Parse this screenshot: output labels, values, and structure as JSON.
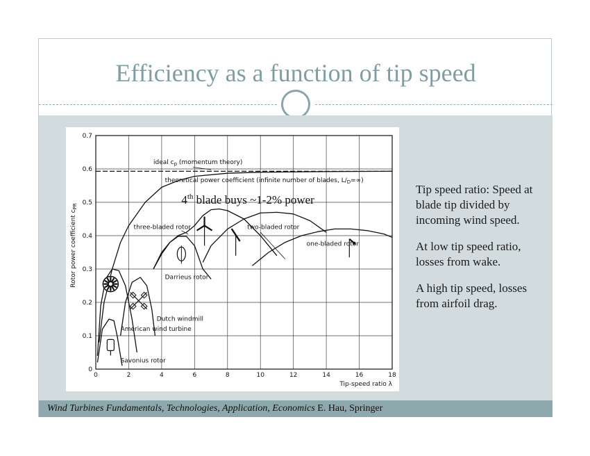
{
  "slide": {
    "title": "Efficiency as a function of tip speed",
    "side_text": [
      "Tip speed ratio: Speed at blade tip divided by incoming wind speed.",
      "At low tip speed ratio, losses from wake.",
      "A high tip speed, losses from airfoil drag."
    ],
    "footer_italic": "Wind Turbines Fundamentals, Technologies, Application, Economics",
    "footer_rest": " E. Hau, Springer",
    "colors": {
      "title": "#7f9ea4",
      "panel": "#d2dcdf",
      "footer": "#8ea9ae"
    }
  },
  "chart_data": {
    "type": "line",
    "xlabel": "Tip-speed ratio λ",
    "ylabel": "Rotor power coefficient c",
    "ylabel_sub": "PR",
    "xlim": [
      0,
      18
    ],
    "ylim": [
      0,
      0.7
    ],
    "xticks": [
      "0",
      "2",
      "4",
      "6",
      "8",
      "10",
      "12",
      "14",
      "16",
      "18"
    ],
    "yticks": [
      "0",
      "0.1",
      "0.2",
      "0.3",
      "0.4",
      "0.5",
      "0.6",
      "0.7"
    ],
    "grid": true,
    "annotation": {
      "base": "4",
      "sup": "th",
      "rest": " blade buys ~1-2% power"
    },
    "series": [
      {
        "name": "ideal cp (momentum theory)",
        "style": "dashed",
        "points": [
          [
            0,
            0.593
          ],
          [
            18,
            0.593
          ]
        ]
      },
      {
        "name": "theoretical power coefficient (infinite number of blades, L/D=∞)",
        "style": "solid",
        "points": [
          [
            0.2,
            0.08
          ],
          [
            0.5,
            0.2
          ],
          [
            1,
            0.3
          ],
          [
            1.5,
            0.38
          ],
          [
            2,
            0.43
          ],
          [
            3,
            0.5
          ],
          [
            4,
            0.545
          ],
          [
            5,
            0.565
          ],
          [
            6,
            0.578
          ],
          [
            8,
            0.587
          ],
          [
            10,
            0.59
          ],
          [
            14,
            0.592
          ],
          [
            18,
            0.593
          ]
        ]
      },
      {
        "name": "three-bladed rotor",
        "style": "solid",
        "points": [
          [
            3.5,
            0.3
          ],
          [
            4,
            0.35
          ],
          [
            4.5,
            0.38
          ],
          [
            5,
            0.4
          ],
          [
            5.5,
            0.41
          ],
          [
            6,
            0.43
          ],
          [
            6.5,
            0.46
          ],
          [
            7,
            0.478
          ],
          [
            7.5,
            0.48
          ],
          [
            8,
            0.475
          ],
          [
            9,
            0.45
          ],
          [
            10,
            0.4
          ],
          [
            11,
            0.34
          ]
        ]
      },
      {
        "name": "two-bladed rotor",
        "style": "solid",
        "points": [
          [
            6.5,
            0.32
          ],
          [
            7,
            0.37
          ],
          [
            8,
            0.42
          ],
          [
            9,
            0.45
          ],
          [
            10,
            0.468
          ],
          [
            11,
            0.47
          ],
          [
            12,
            0.465
          ],
          [
            13,
            0.445
          ],
          [
            14,
            0.41
          ]
        ]
      },
      {
        "name": "one-bladed rotor",
        "style": "solid",
        "points": [
          [
            9.5,
            0.31
          ],
          [
            10.5,
            0.35
          ],
          [
            11.5,
            0.38
          ],
          [
            12.5,
            0.4
          ],
          [
            13.5,
            0.412
          ],
          [
            14.5,
            0.42
          ],
          [
            15.5,
            0.42
          ],
          [
            16.5,
            0.415
          ],
          [
            17.5,
            0.405
          ],
          [
            18,
            0.395
          ]
        ]
      },
      {
        "name": "Darrieus rotor",
        "style": "solid",
        "points": [
          [
            3.5,
            0.3
          ],
          [
            4,
            0.345
          ],
          [
            4.5,
            0.38
          ],
          [
            5,
            0.398
          ],
          [
            5.5,
            0.398
          ],
          [
            6,
            0.37
          ],
          [
            6.5,
            0.3
          ],
          [
            7,
            0.27
          ]
        ]
      },
      {
        "name": "American wind turbine",
        "style": "solid",
        "points": [
          [
            0.1,
            0.04
          ],
          [
            0.3,
            0.19
          ],
          [
            0.6,
            0.27
          ],
          [
            1,
            0.3
          ],
          [
            1.4,
            0.295
          ],
          [
            1.8,
            0.25
          ],
          [
            2.2,
            0.15
          ],
          [
            2.5,
            0.05
          ]
        ]
      },
      {
        "name": "Dutch windmill",
        "style": "solid",
        "points": [
          [
            1.5,
            0.1
          ],
          [
            1.8,
            0.2
          ],
          [
            2.2,
            0.26
          ],
          [
            2.7,
            0.275
          ],
          [
            3.1,
            0.25
          ],
          [
            3.4,
            0.18
          ],
          [
            3.6,
            0.1
          ]
        ]
      },
      {
        "name": "Savonius rotor",
        "style": "solid",
        "points": [
          [
            0.1,
            0.02
          ],
          [
            0.4,
            0.12
          ],
          [
            0.8,
            0.15
          ],
          [
            1.1,
            0.145
          ],
          [
            1.3,
            0.1
          ],
          [
            1.5,
            0.04
          ],
          [
            1.6,
            0.01
          ]
        ]
      }
    ],
    "labels": [
      {
        "text": "ideal c",
        "sub": "p",
        "rest": " (momentum theory)",
        "x": 3.5,
        "y": 0.615
      },
      {
        "text": "theoretical power coefficient (infinite number of blades, ",
        "rest": "L/",
        "sub": "D",
        "end": "=∞)",
        "x": 4.2,
        "y": 0.56
      },
      {
        "text": "three-bladed rotor",
        "x": 2.3,
        "y": 0.42
      },
      {
        "text": "two-bladed rotor",
        "x": 9.2,
        "y": 0.42
      },
      {
        "text": "one-bladed rotor",
        "x": 12.8,
        "y": 0.37
      },
      {
        "text": "Darrieus rotor",
        "x": 4.2,
        "y": 0.27
      },
      {
        "text": "Dutch windmill",
        "x": 3.7,
        "y": 0.145
      },
      {
        "text": "American wind turbine",
        "x": 1.5,
        "y": 0.115
      },
      {
        "text": "Savonius rotor",
        "x": 1.5,
        "y": 0.02
      }
    ]
  }
}
